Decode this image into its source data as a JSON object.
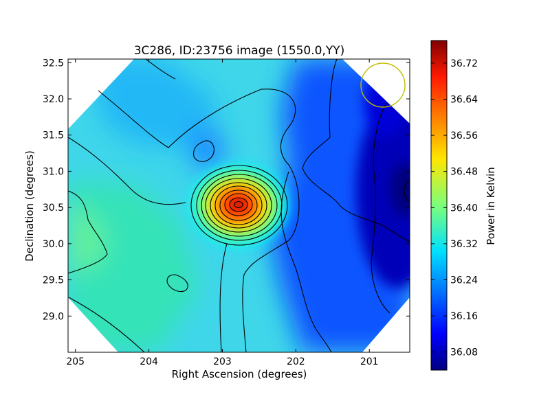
{
  "chart_data": {
    "type": "heatmap",
    "title": "3C286, ID:23756 image (1550.0,YY)",
    "xlabel": "Right Ascension (degrees)",
    "ylabel": "Declination (degrees)",
    "xlim": [
      205.1,
      200.45
    ],
    "ylim": [
      28.5,
      32.55
    ],
    "x_ticks": [
      205,
      204,
      203,
      202,
      201
    ],
    "y_ticks": [
      29.0,
      29.5,
      30.0,
      30.5,
      31.0,
      31.5,
      32.0,
      32.5
    ],
    "x_tick_labels": [
      "205",
      "204",
      "203",
      "202",
      "201"
    ],
    "y_tick_labels": [
      "29.0",
      "29.5",
      "30.0",
      "30.5",
      "31.0",
      "31.5",
      "32.0",
      "32.5"
    ],
    "grid": false,
    "colormap": "jet",
    "colorbar": {
      "label": "Power in Kelvin",
      "min": 36.04,
      "max": 36.77,
      "ticks": [
        36.08,
        36.16,
        36.24,
        36.32,
        36.4,
        36.48,
        36.56,
        36.64,
        36.72
      ],
      "tick_labels": [
        "36.08",
        "36.16",
        "36.24",
        "36.32",
        "36.40",
        "36.48",
        "36.56",
        "36.64",
        "36.72"
      ]
    },
    "peak": {
      "ra": 202.78,
      "dec": 30.5,
      "value": 36.76
    },
    "minimum": {
      "ra": 200.5,
      "dec": 30.7,
      "value": 36.05
    },
    "beam_circle": {
      "ra": 200.85,
      "dec": 32.15,
      "color": "#bfbf00"
    }
  }
}
